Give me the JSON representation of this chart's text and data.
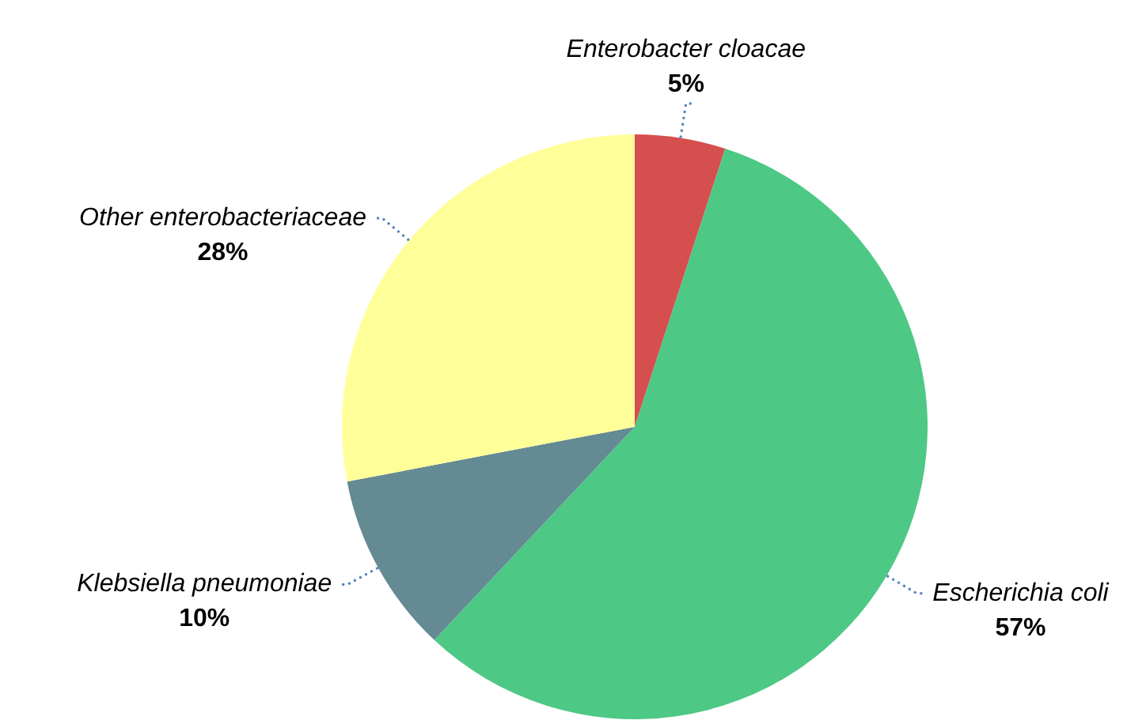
{
  "chart_data": {
    "type": "pie",
    "categories": [
      "Enterobacter cloacae",
      "Escherichia coli",
      "Klebsiella pneumoniae",
      "Other enterobacteriaceae"
    ],
    "values": [
      5,
      57,
      10,
      28
    ],
    "colors": [
      "#d64f4f",
      "#4dc885",
      "#648a94",
      "#ffff99"
    ],
    "value_labels": [
      "5%",
      "57%",
      "10%",
      "28%"
    ],
    "legend": false
  }
}
